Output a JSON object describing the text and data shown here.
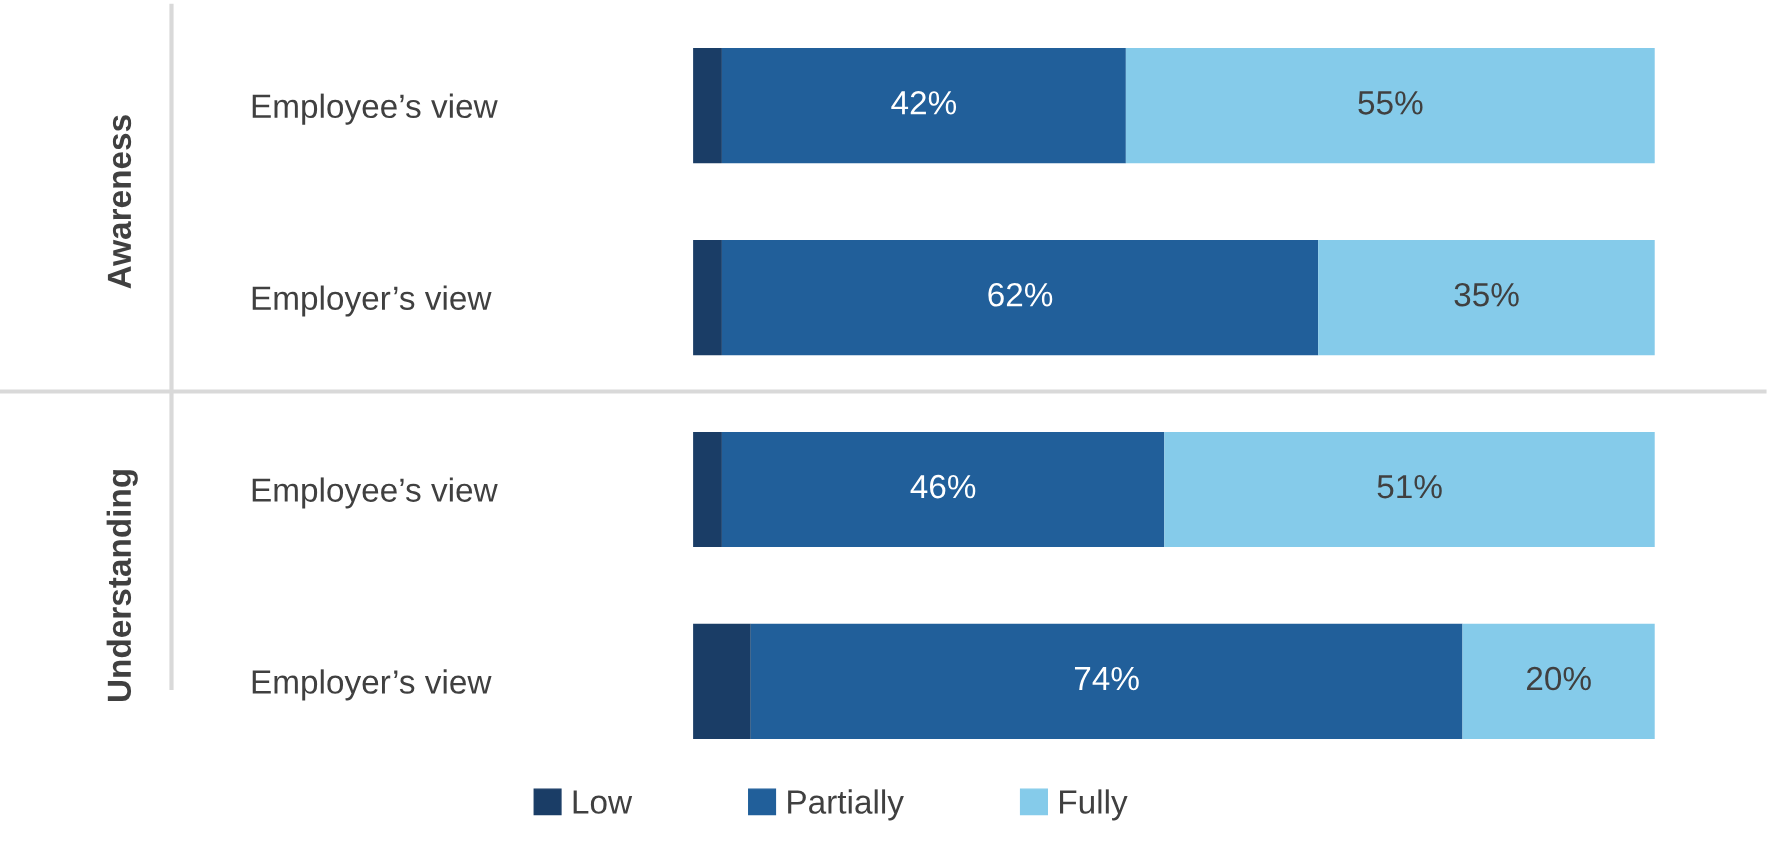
{
  "chart_data": {
    "type": "bar",
    "orientation": "horizontal",
    "stacked": true,
    "categories": [
      "Employee’s view",
      "Employer’s view",
      "Employee’s view",
      "Employer’s view"
    ],
    "annotations": [
      "Awareness",
      "Understanding"
    ],
    "xlim": [
      0,
      100
    ],
    "tick_labels": "y",
    "legend": "bottom",
    "grid": false,
    "series": [
      {
        "name": "Low",
        "color": "#1a3d66",
        "values": [
          3,
          3,
          3,
          6
        ],
        "value_labels": [
          null,
          null,
          null,
          null
        ]
      },
      {
        "name": "Partially",
        "color": "#215f9a",
        "values": [
          42,
          62,
          46,
          74
        ],
        "value_labels": [
          "42%",
          "62%",
          "46%",
          "74%"
        ]
      },
      {
        "name": "Fully",
        "color": "#85cbea",
        "values": [
          55,
          35,
          51,
          20
        ],
        "value_labels": [
          "55%",
          "35%",
          "51%",
          "20%"
        ]
      }
    ]
  }
}
